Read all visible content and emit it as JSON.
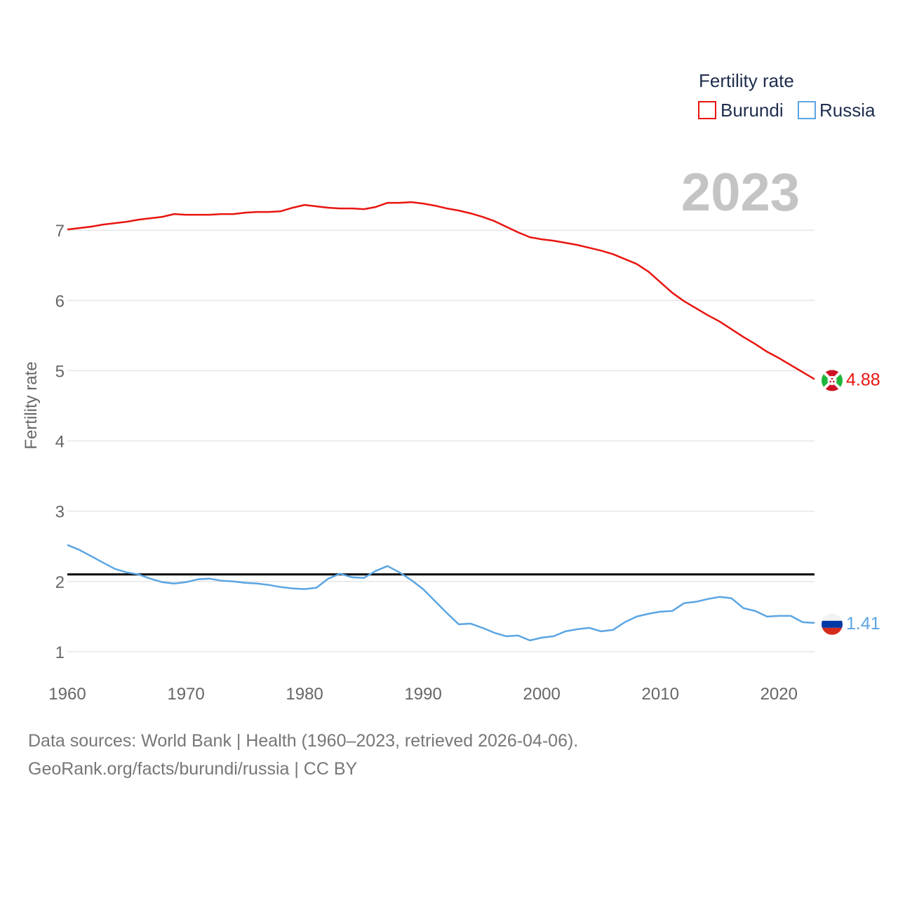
{
  "chart_data": {
    "type": "line",
    "ylabel": "Fertility rate",
    "xlabel": "",
    "year_label": "2023",
    "legend": {
      "title": "Fertility rate",
      "placement": "top-right"
    },
    "xlim": [
      1960,
      2023
    ],
    "ylim": [
      0.5,
      7.9
    ],
    "x_ticks": [
      1960,
      1970,
      1980,
      1990,
      2000,
      2010,
      2020
    ],
    "y_ticks": [
      1,
      2,
      3,
      4,
      5,
      6,
      7
    ],
    "reference_line": {
      "value": 2.1,
      "color": "#000000"
    },
    "x": [
      1960,
      1961,
      1962,
      1963,
      1964,
      1965,
      1966,
      1967,
      1968,
      1969,
      1970,
      1971,
      1972,
      1973,
      1974,
      1975,
      1976,
      1977,
      1978,
      1979,
      1980,
      1981,
      1982,
      1983,
      1984,
      1985,
      1986,
      1987,
      1988,
      1989,
      1990,
      1991,
      1992,
      1993,
      1994,
      1995,
      1996,
      1997,
      1998,
      1999,
      2000,
      2001,
      2002,
      2003,
      2004,
      2005,
      2006,
      2007,
      2008,
      2009,
      2010,
      2011,
      2012,
      2013,
      2014,
      2015,
      2016,
      2017,
      2018,
      2019,
      2020,
      2021,
      2022,
      2023
    ],
    "series": [
      {
        "name": "Burundi",
        "color": "#e8150f",
        "end_label": "4.88",
        "flag": "burundi-flag",
        "values": [
          7.01,
          7.03,
          7.05,
          7.08,
          7.1,
          7.12,
          7.15,
          7.17,
          7.19,
          7.23,
          7.22,
          7.22,
          7.22,
          7.23,
          7.23,
          7.25,
          7.26,
          7.26,
          7.27,
          7.32,
          7.36,
          7.34,
          7.32,
          7.31,
          7.31,
          7.3,
          7.33,
          7.39,
          7.39,
          7.4,
          7.38,
          7.35,
          7.31,
          7.28,
          7.24,
          7.19,
          7.13,
          7.05,
          6.97,
          6.9,
          6.87,
          6.85,
          6.82,
          6.79,
          6.75,
          6.71,
          6.66,
          6.59,
          6.52,
          6.41,
          6.26,
          6.11,
          5.99,
          5.89,
          5.79,
          5.7,
          5.59,
          5.48,
          5.38,
          5.27,
          5.18,
          5.08,
          4.98,
          4.88
        ]
      },
      {
        "name": "Russia",
        "color": "#5ba5e3",
        "end_label": "1.41",
        "flag": "russia-flag",
        "values": [
          2.52,
          2.45,
          2.36,
          2.27,
          2.18,
          2.13,
          2.1,
          2.04,
          1.99,
          1.97,
          1.99,
          2.03,
          2.04,
          2.01,
          2.0,
          1.98,
          1.97,
          1.95,
          1.92,
          1.9,
          1.89,
          1.91,
          2.04,
          2.11,
          2.06,
          2.05,
          2.15,
          2.22,
          2.13,
          2.02,
          1.89,
          1.72,
          1.55,
          1.39,
          1.4,
          1.34,
          1.27,
          1.22,
          1.23,
          1.16,
          1.2,
          1.22,
          1.29,
          1.32,
          1.34,
          1.29,
          1.31,
          1.42,
          1.5,
          1.54,
          1.57,
          1.58,
          1.69,
          1.71,
          1.75,
          1.78,
          1.76,
          1.62,
          1.58,
          1.5,
          1.51,
          1.51,
          1.42,
          1.41
        ]
      }
    ]
  },
  "footer": {
    "line1": "Data sources: World Bank | Health (1960–2023, retrieved 2026-04-06).",
    "line2": "GeoRank.org/facts/burundi/russia | CC BY"
  }
}
